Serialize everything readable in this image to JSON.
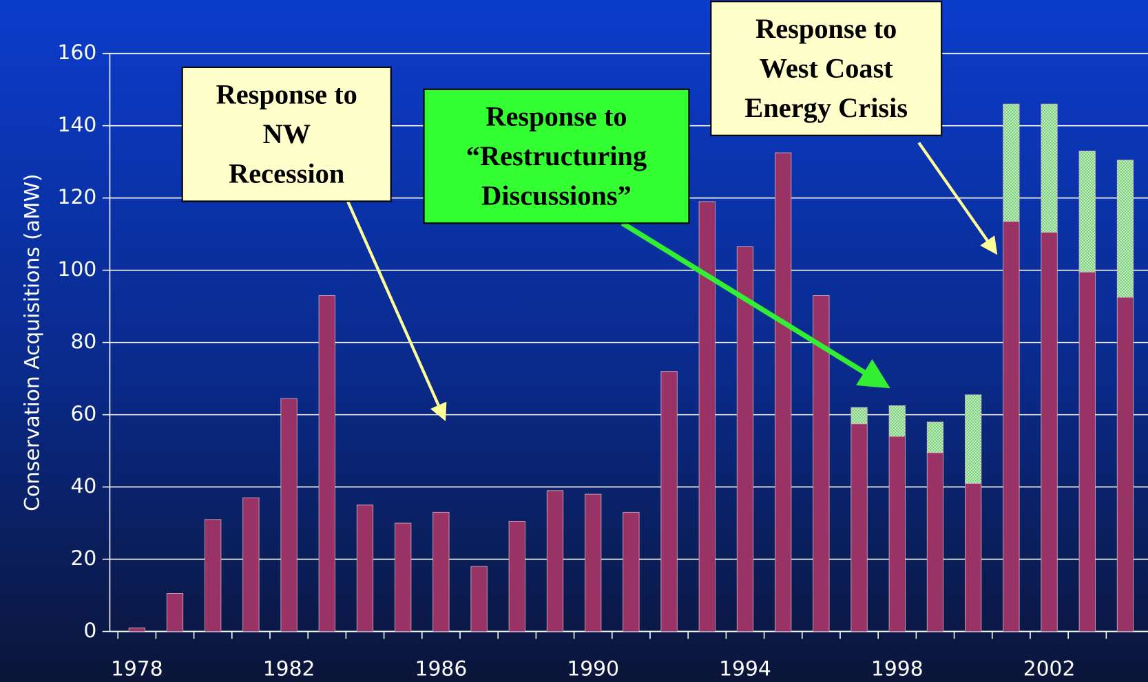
{
  "chart_data": {
    "type": "stacked_bar",
    "y_label": "Conservation Acquisitions (aMW)",
    "categories": [
      "1978",
      null,
      null,
      null,
      "1982",
      null,
      null,
      null,
      "1986",
      null,
      null,
      null,
      "1990",
      null,
      null,
      null,
      "1994",
      null,
      null,
      null,
      "1998",
      null,
      null,
      null,
      "2002",
      null,
      null
    ],
    "series": [
      {
        "color": "#993366",
        "values": [
          1,
          10.5,
          31,
          37,
          64.5,
          93,
          35,
          30,
          33,
          18,
          30.5,
          39,
          38,
          33,
          72,
          119,
          106.5,
          132.5,
          93,
          57.5,
          54,
          49.5,
          41,
          113.5,
          110.5,
          99.5,
          92.5
        ]
      },
      {
        "color": "#66cc66",
        "values": [
          0,
          0,
          0,
          0,
          0,
          0,
          0,
          0,
          0,
          0,
          0,
          0,
          0,
          0,
          0,
          0,
          0,
          0,
          0,
          4.5,
          8.5,
          8.5,
          24.5,
          32.5,
          35.5,
          33.5,
          38
        ]
      }
    ],
    "ylim": [
      0,
      160
    ],
    "yticks": [
      0,
      20,
      40,
      60,
      80,
      100,
      120,
      140,
      160
    ],
    "grid": true,
    "annotations": [
      {
        "lines": [
          "Response to",
          "NW",
          "Recession"
        ],
        "color": "#ffffcc",
        "arrow_color": "#ffff99"
      },
      {
        "lines": [
          "Response to",
          "“Restructuring",
          "Discussions”"
        ],
        "color": "#33ff33",
        "arrow_color": "#33ee33"
      },
      {
        "lines": [
          "Response to",
          "West Coast",
          "Energy Crisis"
        ],
        "color": "#ffffcc",
        "arrow_color": "#ffff99"
      }
    ]
  }
}
